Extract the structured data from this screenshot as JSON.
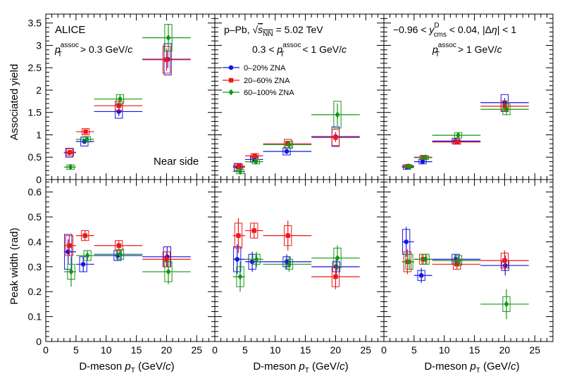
{
  "colors": {
    "blue": "#1515e0",
    "red": "#f01515",
    "green": "#159615",
    "axis": "#000000"
  },
  "axes": {
    "top_ylabel": "Associated yield",
    "bottom_ylabel": "Peak width (rad)",
    "xlabel": "D-meson",
    "xlabel_var": "p",
    "xlabel_sub": "T",
    "xlabel_units": "(GeV/",
    "xlabel_c": "c",
    "xlabel_close": ")",
    "xticks": [
      "0",
      "5",
      "10",
      "15",
      "20",
      "25"
    ],
    "top_yticks": [
      "0",
      "0.5",
      "1",
      "1.5",
      "2",
      "2.5",
      "3",
      "3.5"
    ],
    "bottom_yticks": [
      "0",
      "0.1",
      "0.2",
      "0.3",
      "0.4",
      "0.5",
      "0.6"
    ]
  },
  "annotations": {
    "experiment": "ALICE",
    "p1_cut_main": "p",
    "p1_cut_sup": "assoc",
    "p1_cut_sub": "T",
    "p1_cut_tail": " > 0.3 GeV/",
    "p1_cut_c": "c",
    "near_side": "Near side",
    "system": "p–Pb, ",
    "sqrt_s": "s",
    "sqrt_sub": "NN",
    "energy": " = 5.02 TeV",
    "p2_cut_pre": "0.3 < ",
    "p2_cut_main": "p",
    "p2_cut_sup": "assoc",
    "p2_cut_sub": "T",
    "p2_cut_tail": " < 1 GeV/",
    "p2_cut_c": "c",
    "rap_pre": "−0.96 < ",
    "rap_var": "y",
    "rap_sup": "D",
    "rap_sub": "cms",
    "rap_tail": " < 0.04, |Δ",
    "rap_eta": "η",
    "rap_end": "| < 1",
    "p3_cut_main": "p",
    "p3_cut_sup": "assoc",
    "p3_cut_sub": "T",
    "p3_cut_tail": " > 1 GeV/",
    "p3_cut_c": "c"
  },
  "legend": [
    {
      "label": "0–20% ZNA",
      "color": "blue",
      "marker": "circle"
    },
    {
      "label": "20–60% ZNA",
      "color": "red",
      "marker": "square"
    },
    {
      "label": "60–100% ZNA",
      "color": "green",
      "marker": "diamond"
    }
  ],
  "chart_data": [
    {
      "type": "scatter",
      "panel": "yield, pT assoc > 0.3 GeV/c",
      "title": "Associated yield",
      "xlim": [
        0,
        28
      ],
      "ylim": [
        0,
        3.7
      ],
      "xlabel": "D-meson pT (GeV/c)",
      "ylabel": "Associated yield",
      "series": [
        {
          "name": "0–20% ZNA",
          "color": "blue",
          "marker": "circle",
          "points": [
            {
              "x": 3.9,
              "xlo": 3,
              "xhi": 5,
              "y": 0.6,
              "stat": 0.05,
              "syst": 0.1
            },
            {
              "x": 6.4,
              "xlo": 5,
              "xhi": 8,
              "y": 0.85,
              "stat": 0.05,
              "syst": 0.1
            },
            {
              "x": 12.1,
              "xlo": 8,
              "xhi": 16,
              "y": 1.52,
              "stat": 0.1,
              "syst": 0.15
            },
            {
              "x": 20.2,
              "xlo": 16,
              "xhi": 24,
              "y": 2.69,
              "stat": 0.2,
              "syst": 0.35
            }
          ]
        },
        {
          "name": "20–60% ZNA",
          "color": "red",
          "marker": "square",
          "points": [
            {
              "x": 4.0,
              "xlo": 3,
              "xhi": 5,
              "y": 0.61,
              "stat": 0.05,
              "syst": 0.08
            },
            {
              "x": 6.6,
              "xlo": 5,
              "xhi": 8,
              "y": 1.07,
              "stat": 0.05,
              "syst": 0.07
            },
            {
              "x": 12.1,
              "xlo": 8,
              "xhi": 16,
              "y": 1.65,
              "stat": 0.1,
              "syst": 0.1
            },
            {
              "x": 20.0,
              "xlo": 16,
              "xhi": 24,
              "y": 2.68,
              "stat": 0.25,
              "syst": 0.3
            }
          ]
        },
        {
          "name": "60–100% ZNA",
          "color": "green",
          "marker": "diamond",
          "points": [
            {
              "x": 4.1,
              "xlo": 3,
              "xhi": 5,
              "y": 0.28,
              "stat": 0.04,
              "syst": 0.05
            },
            {
              "x": 6.8,
              "xlo": 5,
              "xhi": 8,
              "y": 0.9,
              "stat": 0.05,
              "syst": 0.06
            },
            {
              "x": 12.3,
              "xlo": 8,
              "xhi": 16,
              "y": 1.8,
              "stat": 0.1,
              "syst": 0.1
            },
            {
              "x": 20.3,
              "xlo": 16,
              "xhi": 24,
              "y": 3.17,
              "stat": 0.3,
              "syst": 0.3
            }
          ]
        }
      ]
    },
    {
      "type": "scatter",
      "panel": "yield, 0.3 < pT assoc < 1 GeV/c",
      "xlim": [
        0,
        28
      ],
      "ylim": [
        0,
        3.7
      ],
      "series": [
        {
          "name": "0–20% ZNA",
          "color": "blue",
          "marker": "circle",
          "points": [
            {
              "x": 3.8,
              "xlo": 3,
              "xhi": 5,
              "y": 0.28,
              "stat": 0.04,
              "syst": 0.08
            },
            {
              "x": 6.5,
              "xlo": 5,
              "xhi": 8,
              "y": 0.45,
              "stat": 0.04,
              "syst": 0.06
            },
            {
              "x": 11.9,
              "xlo": 8,
              "xhi": 16,
              "y": 0.63,
              "stat": 0.06,
              "syst": 0.08
            },
            {
              "x": 20.0,
              "xlo": 16,
              "xhi": 24,
              "y": 0.96,
              "stat": 0.1,
              "syst": 0.22
            }
          ]
        },
        {
          "name": "20–60% ZNA",
          "color": "red",
          "marker": "square",
          "points": [
            {
              "x": 4.0,
              "xlo": 3,
              "xhi": 5,
              "y": 0.3,
              "stat": 0.04,
              "syst": 0.05
            },
            {
              "x": 6.6,
              "xlo": 5,
              "xhi": 8,
              "y": 0.53,
              "stat": 0.05,
              "syst": 0.05
            },
            {
              "x": 12.1,
              "xlo": 8,
              "xhi": 16,
              "y": 0.8,
              "stat": 0.06,
              "syst": 0.1
            },
            {
              "x": 20.0,
              "xlo": 16,
              "xhi": 24,
              "y": 0.94,
              "stat": 0.1,
              "syst": 0.18
            }
          ]
        },
        {
          "name": "60–100% ZNA",
          "color": "green",
          "marker": "diamond",
          "points": [
            {
              "x": 4.2,
              "xlo": 3,
              "xhi": 5,
              "y": 0.18,
              "stat": 0.04,
              "syst": 0.05
            },
            {
              "x": 6.8,
              "xlo": 5,
              "xhi": 8,
              "y": 0.4,
              "stat": 0.05,
              "syst": 0.05
            },
            {
              "x": 12.3,
              "xlo": 8,
              "xhi": 16,
              "y": 0.78,
              "stat": 0.06,
              "syst": 0.08
            },
            {
              "x": 20.3,
              "xlo": 16,
              "xhi": 24,
              "y": 1.45,
              "stat": 0.25,
              "syst": 0.3
            }
          ]
        }
      ]
    },
    {
      "type": "scatter",
      "panel": "yield, pT assoc > 1 GeV/c",
      "xlim": [
        0,
        28
      ],
      "ylim": [
        0,
        3.7
      ],
      "series": [
        {
          "name": "0–20% ZNA",
          "color": "blue",
          "marker": "circle",
          "points": [
            {
              "x": 3.8,
              "xlo": 3,
              "xhi": 5,
              "y": 0.28,
              "stat": 0.02,
              "syst": 0.05
            },
            {
              "x": 6.4,
              "xlo": 5,
              "xhi": 8,
              "y": 0.4,
              "stat": 0.03,
              "syst": 0.05
            },
            {
              "x": 11.9,
              "xlo": 8,
              "xhi": 16,
              "y": 0.86,
              "stat": 0.05,
              "syst": 0.06
            },
            {
              "x": 20.0,
              "xlo": 16,
              "xhi": 24,
              "y": 1.72,
              "stat": 0.1,
              "syst": 0.18
            }
          ]
        },
        {
          "name": "20–60% ZNA",
          "color": "red",
          "marker": "square",
          "points": [
            {
              "x": 4.0,
              "xlo": 3,
              "xhi": 5,
              "y": 0.3,
              "stat": 0.02,
              "syst": 0.03
            },
            {
              "x": 6.6,
              "xlo": 5,
              "xhi": 8,
              "y": 0.5,
              "stat": 0.03,
              "syst": 0.04
            },
            {
              "x": 12.1,
              "xlo": 8,
              "xhi": 16,
              "y": 0.84,
              "stat": 0.04,
              "syst": 0.05
            },
            {
              "x": 20.0,
              "xlo": 16,
              "xhi": 24,
              "y": 1.64,
              "stat": 0.1,
              "syst": 0.12
            }
          ]
        },
        {
          "name": "60–100% ZNA",
          "color": "green",
          "marker": "diamond",
          "points": [
            {
              "x": 4.2,
              "xlo": 3,
              "xhi": 5,
              "y": 0.29,
              "stat": 0.02,
              "syst": 0.03
            },
            {
              "x": 6.8,
              "xlo": 5,
              "xhi": 8,
              "y": 0.49,
              "stat": 0.03,
              "syst": 0.04
            },
            {
              "x": 12.3,
              "xlo": 8,
              "xhi": 16,
              "y": 0.99,
              "stat": 0.05,
              "syst": 0.06
            },
            {
              "x": 20.3,
              "xlo": 16,
              "xhi": 24,
              "y": 1.57,
              "stat": 0.12,
              "syst": 0.12
            }
          ]
        }
      ]
    },
    {
      "type": "scatter",
      "panel": "width, pT assoc > 0.3 GeV/c",
      "xlim": [
        0,
        28
      ],
      "ylim": [
        0,
        0.65
      ],
      "ylabel": "Peak width (rad)",
      "series": [
        {
          "name": "0–20% ZNA",
          "color": "blue",
          "marker": "circle",
          "points": [
            {
              "x": 3.7,
              "xlo": 3,
              "xhi": 5,
              "y": 0.36,
              "stat": 0.05,
              "syst": 0.07
            },
            {
              "x": 6.2,
              "xlo": 5,
              "xhi": 8,
              "y": 0.31,
              "stat": 0.03,
              "syst": 0.03
            },
            {
              "x": 11.9,
              "xlo": 8,
              "xhi": 16,
              "y": 0.345,
              "stat": 0.02,
              "syst": 0.02
            },
            {
              "x": 20.1,
              "xlo": 16,
              "xhi": 24,
              "y": 0.34,
              "stat": 0.04,
              "syst": 0.04
            }
          ]
        },
        {
          "name": "20–60% ZNA",
          "color": "red",
          "marker": "square",
          "points": [
            {
              "x": 3.9,
              "xlo": 3,
              "xhi": 5,
              "y": 0.385,
              "stat": 0.04,
              "syst": 0.04
            },
            {
              "x": 6.5,
              "xlo": 5,
              "xhi": 8,
              "y": 0.425,
              "stat": 0.02,
              "syst": 0.02
            },
            {
              "x": 12.1,
              "xlo": 8,
              "xhi": 16,
              "y": 0.385,
              "stat": 0.02,
              "syst": 0.02
            },
            {
              "x": 20.0,
              "xlo": 16,
              "xhi": 24,
              "y": 0.33,
              "stat": 0.03,
              "syst": 0.03
            }
          ]
        },
        {
          "name": "60–100% ZNA",
          "color": "green",
          "marker": "diamond",
          "points": [
            {
              "x": 4.2,
              "xlo": 3,
              "xhi": 5,
              "y": 0.28,
              "stat": 0.06,
              "syst": 0.03
            },
            {
              "x": 6.9,
              "xlo": 5,
              "xhi": 8,
              "y": 0.345,
              "stat": 0.02,
              "syst": 0.02
            },
            {
              "x": 12.3,
              "xlo": 8,
              "xhi": 16,
              "y": 0.35,
              "stat": 0.02,
              "syst": 0.02
            },
            {
              "x": 20.3,
              "xlo": 16,
              "xhi": 24,
              "y": 0.28,
              "stat": 0.05,
              "syst": 0.04
            }
          ]
        }
      ]
    },
    {
      "type": "scatter",
      "panel": "width, 0.3 < pT assoc < 1 GeV/c",
      "xlim": [
        0,
        28
      ],
      "ylim": [
        0,
        0.65
      ],
      "series": [
        {
          "name": "0–20% ZNA",
          "color": "blue",
          "marker": "circle",
          "points": [
            {
              "x": 3.7,
              "xlo": 3,
              "xhi": 5,
              "y": 0.33,
              "stat": 0.06,
              "syst": 0.05
            },
            {
              "x": 6.2,
              "xlo": 5,
              "xhi": 8,
              "y": 0.32,
              "stat": 0.04,
              "syst": 0.03
            },
            {
              "x": 11.9,
              "xlo": 8,
              "xhi": 16,
              "y": 0.32,
              "stat": 0.03,
              "syst": 0.02
            },
            {
              "x": 20.1,
              "xlo": 16,
              "xhi": 24,
              "y": 0.3,
              "stat": 0.04,
              "syst": 0.02
            }
          ]
        },
        {
          "name": "20–60% ZNA",
          "color": "red",
          "marker": "square",
          "points": [
            {
              "x": 3.9,
              "xlo": 3,
              "xhi": 5,
              "y": 0.425,
              "stat": 0.07,
              "syst": 0.05
            },
            {
              "x": 6.5,
              "xlo": 5,
              "xhi": 8,
              "y": 0.445,
              "stat": 0.03,
              "syst": 0.03
            },
            {
              "x": 12.1,
              "xlo": 8,
              "xhi": 16,
              "y": 0.425,
              "stat": 0.06,
              "syst": 0.04
            },
            {
              "x": 20.0,
              "xlo": 16,
              "xhi": 24,
              "y": 0.26,
              "stat": 0.05,
              "syst": 0.04
            }
          ]
        },
        {
          "name": "60–100% ZNA",
          "color": "green",
          "marker": "diamond",
          "points": [
            {
              "x": 4.2,
              "xlo": 3,
              "xhi": 5,
              "y": 0.26,
              "stat": 0.06,
              "syst": 0.04
            },
            {
              "x": 6.9,
              "xlo": 5,
              "xhi": 8,
              "y": 0.33,
              "stat": 0.03,
              "syst": 0.02
            },
            {
              "x": 12.3,
              "xlo": 8,
              "xhi": 16,
              "y": 0.31,
              "stat": 0.03,
              "syst": 0.02
            },
            {
              "x": 20.3,
              "xlo": 16,
              "xhi": 24,
              "y": 0.335,
              "stat": 0.05,
              "syst": 0.04
            }
          ]
        }
      ]
    },
    {
      "type": "scatter",
      "panel": "width, pT assoc > 1 GeV/c",
      "xlim": [
        0,
        28
      ],
      "ylim": [
        0,
        0.65
      ],
      "series": [
        {
          "name": "0–20% ZNA",
          "color": "blue",
          "marker": "circle",
          "points": [
            {
              "x": 3.7,
              "xlo": 3,
              "xhi": 5,
              "y": 0.4,
              "stat": 0.06,
              "syst": 0.05
            },
            {
              "x": 6.2,
              "xlo": 5,
              "xhi": 8,
              "y": 0.265,
              "stat": 0.03,
              "syst": 0.02
            },
            {
              "x": 11.9,
              "xlo": 8,
              "xhi": 16,
              "y": 0.33,
              "stat": 0.02,
              "syst": 0.02
            },
            {
              "x": 20.1,
              "xlo": 16,
              "xhi": 24,
              "y": 0.305,
              "stat": 0.04,
              "syst": 0.02
            }
          ]
        },
        {
          "name": "20–60% ZNA",
          "color": "red",
          "marker": "square",
          "points": [
            {
              "x": 3.9,
              "xlo": 3,
              "xhi": 5,
              "y": 0.32,
              "stat": 0.05,
              "syst": 0.04
            },
            {
              "x": 6.5,
              "xlo": 5,
              "xhi": 8,
              "y": 0.33,
              "stat": 0.02,
              "syst": 0.02
            },
            {
              "x": 12.1,
              "xlo": 8,
              "xhi": 16,
              "y": 0.31,
              "stat": 0.02,
              "syst": 0.02
            },
            {
              "x": 20.0,
              "xlo": 16,
              "xhi": 24,
              "y": 0.325,
              "stat": 0.04,
              "syst": 0.03
            }
          ]
        },
        {
          "name": "60–100% ZNA",
          "color": "green",
          "marker": "diamond",
          "points": [
            {
              "x": 4.2,
              "xlo": 3,
              "xhi": 5,
              "y": 0.32,
              "stat": 0.03,
              "syst": 0.03
            },
            {
              "x": 6.9,
              "xlo": 5,
              "xhi": 8,
              "y": 0.33,
              "stat": 0.02,
              "syst": 0.02
            },
            {
              "x": 12.3,
              "xlo": 8,
              "xhi": 16,
              "y": 0.325,
              "stat": 0.02,
              "syst": 0.02
            },
            {
              "x": 20.3,
              "xlo": 16,
              "xhi": 24,
              "y": 0.15,
              "stat": 0.06,
              "syst": 0.03
            }
          ]
        }
      ]
    }
  ]
}
